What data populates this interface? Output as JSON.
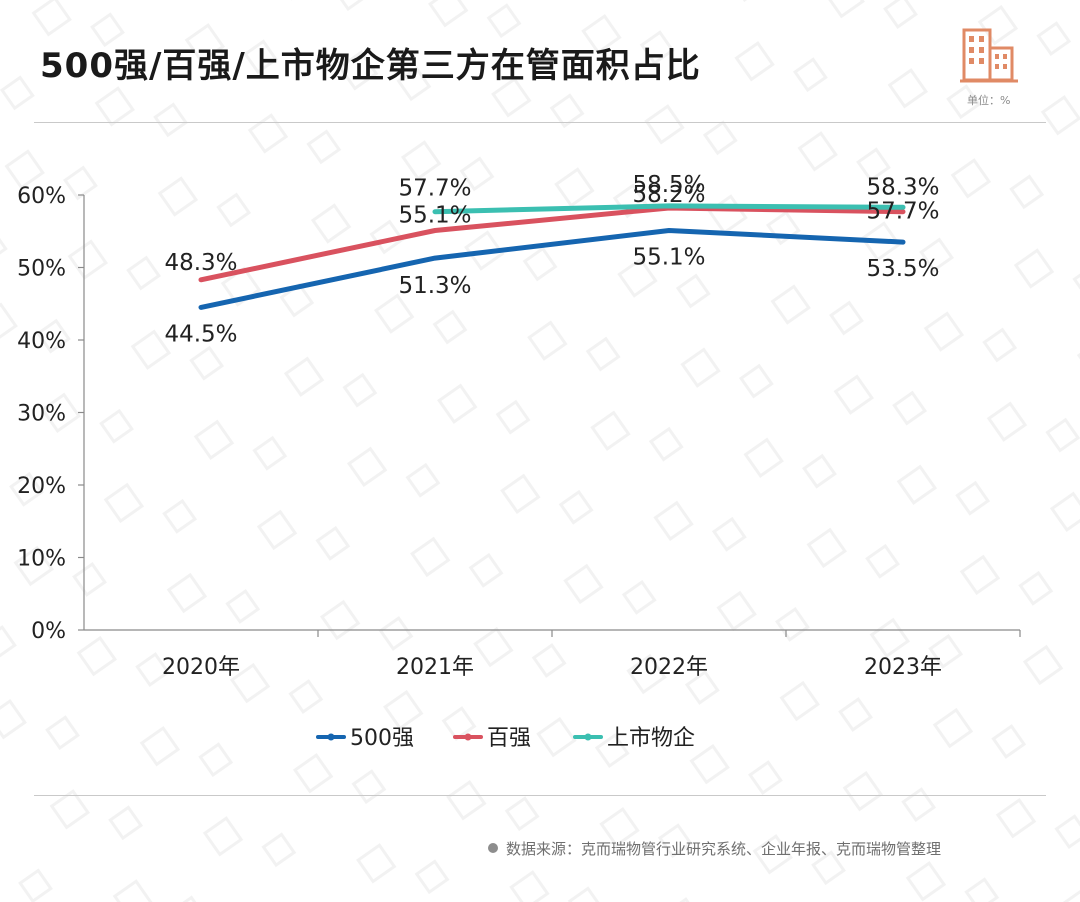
{
  "header": {
    "title": "500强/百强/上市物企第三方在管面积占比",
    "unit_label": "单位：%",
    "logo_icon": "building-icon"
  },
  "footer": {
    "source_text": "数据来源：克而瑞物管行业研究系统、企业年报、克而瑞物管整理"
  },
  "colors": {
    "series_500": "#1565b0",
    "series_100": "#d9525f",
    "series_listed": "#3bbfb1",
    "logo": "#e08a65"
  },
  "chart_data": {
    "type": "line",
    "categories": [
      "2020年",
      "2021年",
      "2022年",
      "2023年"
    ],
    "ylim": [
      0,
      60
    ],
    "yticks": [
      "0%",
      "10%",
      "20%",
      "30%",
      "40%",
      "50%",
      "60%"
    ],
    "ytick_values": [
      0,
      10,
      20,
      30,
      40,
      50,
      60
    ],
    "grid": false,
    "legend_position": "bottom",
    "series": [
      {
        "name": "500强",
        "color": "#1565b0",
        "values": [
          44.5,
          51.3,
          55.1,
          53.5
        ],
        "labels": [
          "44.5%",
          "51.3%",
          "55.1%",
          "53.5%"
        ]
      },
      {
        "name": "百强",
        "color": "#d9525f",
        "values": [
          48.3,
          55.1,
          58.2,
          57.7
        ],
        "labels": [
          "48.3%",
          "55.1%",
          "58.2%",
          "57.7%"
        ]
      },
      {
        "name": "上市物企",
        "color": "#3bbfb1",
        "values": [
          null,
          57.7,
          58.5,
          58.3
        ],
        "labels": [
          null,
          "57.7%",
          "58.5%",
          "58.3%"
        ]
      }
    ]
  }
}
